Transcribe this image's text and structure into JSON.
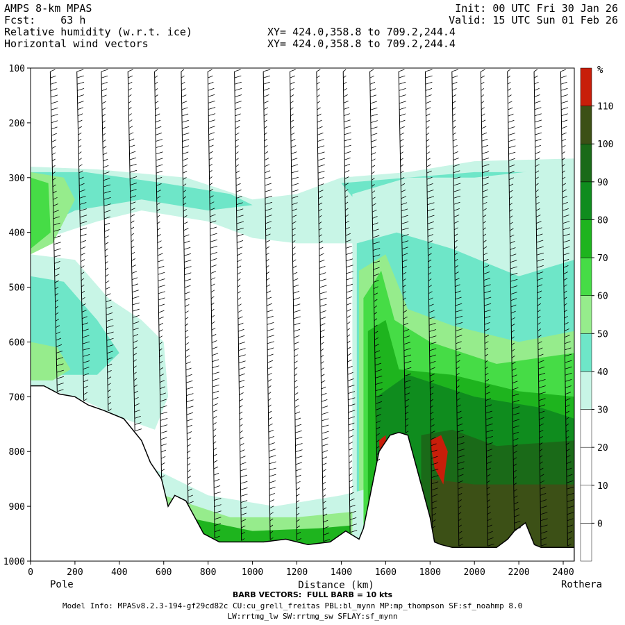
{
  "header": {
    "left": [
      "AMPS 8-km MPAS",
      "Fcst:    63 h",
      "Relative humidity (w.r.t. ice)",
      "Horizontal wind vectors"
    ],
    "mid": [
      "XY= 424.0,358.8 to 709.2,244.4",
      "XY= 424.0,358.8 to 709.2,244.4"
    ],
    "right": [
      "Init: 00 UTC Fri 30 Jan 26",
      "Valid: 15 UTC Sun 01 Feb 26"
    ]
  },
  "footer": {
    "barb_note": "BARB VECTORS:  FULL BARB = 10 kts",
    "model_info": "Model Info: MPASv8.2.3-194-gf29cd82c CU:cu_grell_freitas PBL:bl_mynn MP:mp_thompson SF:sf_noahmp 8.0",
    "model_info2": "LW:rrtmg_lw SW:rrtmg_sw SFLAY:sf_mynn"
  },
  "chart_data": {
    "type": "heatmap",
    "title": "Relative humidity (w.r.t. ice)",
    "xlabel": "Distance (km)",
    "ylabel": "",
    "xlim": [
      0,
      2450
    ],
    "ylim": [
      1000,
      100
    ],
    "xticks": [
      0,
      200,
      400,
      600,
      800,
      1000,
      1200,
      1400,
      1600,
      1800,
      2000,
      2200,
      2400
    ],
    "yticks": [
      100,
      200,
      300,
      400,
      500,
      600,
      700,
      800,
      900,
      1000
    ],
    "x_endpoints": {
      "left": "Pole",
      "right": "Rothera"
    },
    "colorbar": {
      "unit": "%",
      "levels": [
        0,
        10,
        20,
        30,
        40,
        50,
        60,
        70,
        80,
        90,
        100,
        110
      ],
      "colors": [
        "#ffffff",
        "#ffffff",
        "#ffffff",
        "#ffffff",
        "#c8f5e6",
        "#6ee6c8",
        "#96ec8c",
        "#46dc46",
        "#1eb41e",
        "#0f8c1e",
        "#1a6a18",
        "#3c5016",
        "#c81e0a"
      ]
    },
    "terrain_pressure": [
      [
        0,
        680
      ],
      [
        60,
        680
      ],
      [
        130,
        695
      ],
      [
        200,
        700
      ],
      [
        260,
        715
      ],
      [
        330,
        725
      ],
      [
        420,
        740
      ],
      [
        500,
        780
      ],
      [
        540,
        820
      ],
      [
        590,
        850
      ],
      [
        620,
        900
      ],
      [
        650,
        880
      ],
      [
        700,
        890
      ],
      [
        780,
        950
      ],
      [
        850,
        965
      ],
      [
        950,
        965
      ],
      [
        1050,
        965
      ],
      [
        1150,
        960
      ],
      [
        1250,
        970
      ],
      [
        1350,
        965
      ],
      [
        1420,
        945
      ],
      [
        1480,
        960
      ],
      [
        1500,
        940
      ],
      [
        1540,
        860
      ],
      [
        1570,
        800
      ],
      [
        1620,
        770
      ],
      [
        1660,
        765
      ],
      [
        1700,
        770
      ],
      [
        1760,
        860
      ],
      [
        1800,
        920
      ],
      [
        1820,
        965
      ],
      [
        1850,
        970
      ],
      [
        1900,
        975
      ],
      [
        2000,
        975
      ],
      [
        2100,
        975
      ],
      [
        2150,
        960
      ],
      [
        2180,
        945
      ],
      [
        2230,
        930
      ],
      [
        2270,
        970
      ],
      [
        2300,
        975
      ],
      [
        2400,
        975
      ],
      [
        2450,
        975
      ]
    ],
    "barb_columns_km": [
      120,
      240,
      350,
      470,
      590,
      710,
      830,
      950,
      1080,
      1200,
      1320,
      1440,
      1560,
      1690,
      1810,
      1930,
      2060,
      2180,
      2300,
      2420
    ]
  }
}
